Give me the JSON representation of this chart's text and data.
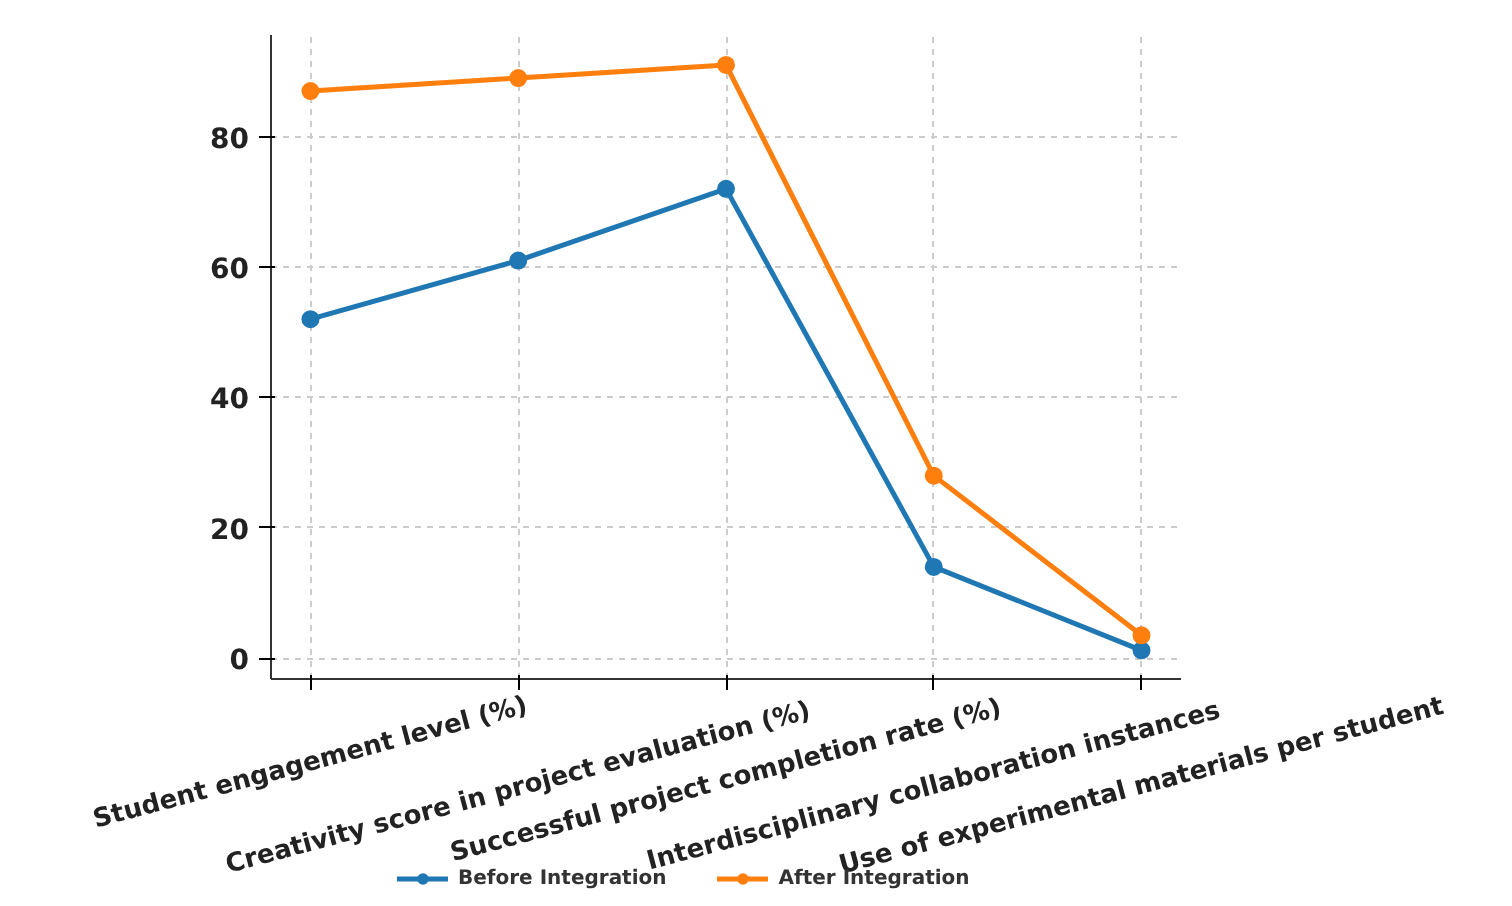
{
  "chart_data": {
    "type": "line",
    "categories": [
      "Student engagement level (%)",
      "Creativity score in project evaluation (%)",
      "Successful project completion rate (%)",
      "Interdisciplinary collaboration instances",
      "Use of experimental materials per student"
    ],
    "series": [
      {
        "name": "Before Integration",
        "color": "#1f77b4",
        "values": [
          52,
          61,
          72,
          14,
          1.2
        ]
      },
      {
        "name": "After Integration",
        "color": "#ff7f0e",
        "values": [
          87,
          89,
          91,
          28,
          3.5
        ]
      }
    ],
    "ylim": [
      -3.2,
      95.6
    ],
    "yticks": [
      0,
      20,
      40,
      60,
      80
    ],
    "grid": true,
    "legend": "bottom",
    "marker": "circle",
    "line_style": "solid"
  }
}
